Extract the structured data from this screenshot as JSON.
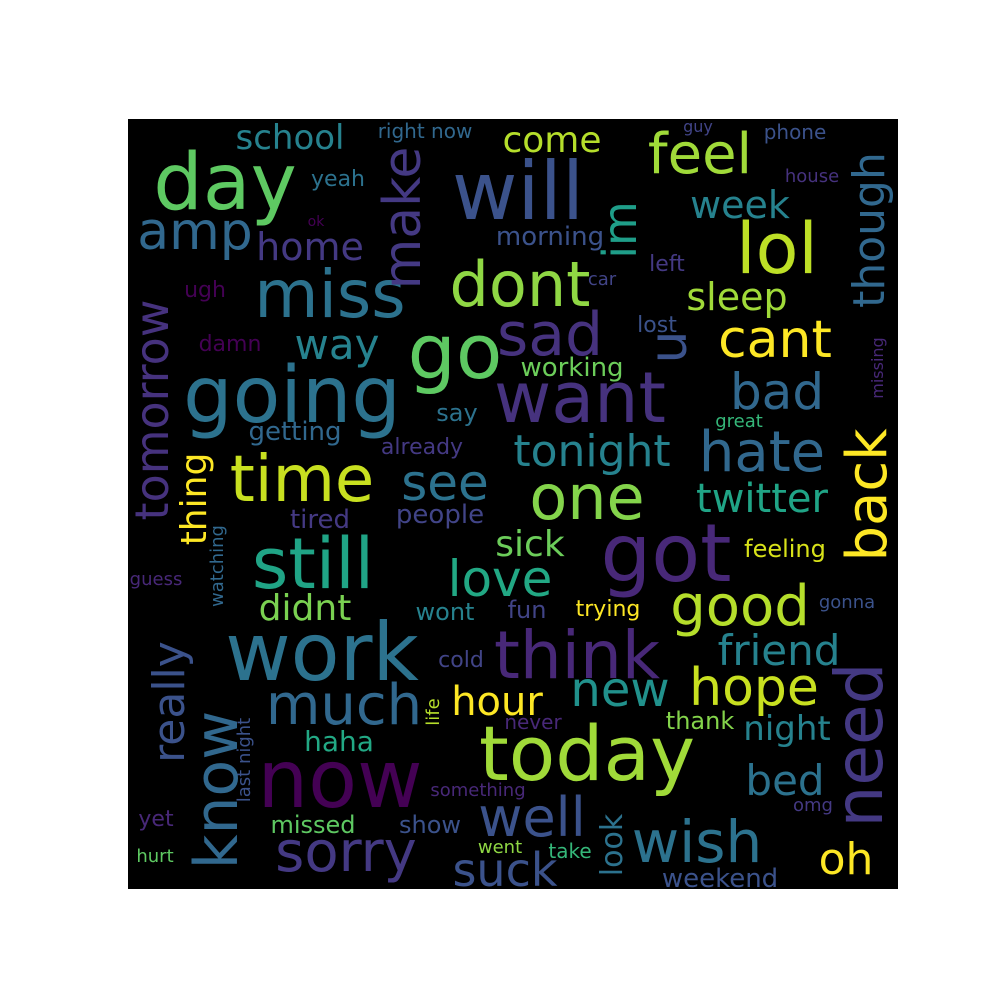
{
  "chart_data": {
    "type": "wordcloud",
    "background": "#000000",
    "colormap": "viridis",
    "words": [
      {
        "text": "will",
        "color": "#3b528b"
      },
      {
        "text": "day",
        "color": "#5ec962"
      },
      {
        "text": "miss",
        "color": "#2c728e"
      },
      {
        "text": "amp",
        "color": "#31688e"
      },
      {
        "text": "school",
        "color": "#26828e"
      },
      {
        "text": "make",
        "color": "#443983"
      },
      {
        "text": "right now",
        "color": "#31688e"
      },
      {
        "text": "come",
        "color": "#b5de2b"
      },
      {
        "text": "feel",
        "color": "#a0da39"
      },
      {
        "text": "guy",
        "color": "#414487"
      },
      {
        "text": "phone",
        "color": "#3b528b"
      },
      {
        "text": "though",
        "color": "#31688e"
      },
      {
        "text": "yeah",
        "color": "#2c728e"
      },
      {
        "text": "house",
        "color": "#46327e"
      },
      {
        "text": "week",
        "color": "#26828e"
      },
      {
        "text": "im",
        "color": "#1f9e89"
      },
      {
        "text": "lol",
        "color": "#bddf26"
      },
      {
        "text": "home",
        "color": "#443983"
      },
      {
        "text": "ok",
        "color": "#440154"
      },
      {
        "text": "morning",
        "color": "#3b528b"
      },
      {
        "text": "dont",
        "color": "#8fd744"
      },
      {
        "text": "car",
        "color": "#414487"
      },
      {
        "text": "left",
        "color": "#443983"
      },
      {
        "text": "sleep",
        "color": "#a0da39"
      },
      {
        "text": "ugh",
        "color": "#440154"
      },
      {
        "text": "tomorrow",
        "color": "#46327e"
      },
      {
        "text": "go",
        "color": "#5ec962"
      },
      {
        "text": "sad",
        "color": "#46327e"
      },
      {
        "text": "u",
        "color": "#3b528b"
      },
      {
        "text": "lost",
        "color": "#3b528b"
      },
      {
        "text": "cant",
        "color": "#fde725"
      },
      {
        "text": "missing",
        "color": "#482878"
      },
      {
        "text": "damn",
        "color": "#440154"
      },
      {
        "text": "way",
        "color": "#26828e"
      },
      {
        "text": "going",
        "color": "#2c728e"
      },
      {
        "text": "working",
        "color": "#6ccd5a"
      },
      {
        "text": "want",
        "color": "#46327e"
      },
      {
        "text": "bad",
        "color": "#31688e"
      },
      {
        "text": "say",
        "color": "#2c728e"
      },
      {
        "text": "great",
        "color": "#35b779"
      },
      {
        "text": "getting",
        "color": "#31688e"
      },
      {
        "text": "already",
        "color": "#443983"
      },
      {
        "text": "tonight",
        "color": "#26828e"
      },
      {
        "text": "hate",
        "color": "#31688e"
      },
      {
        "text": "back",
        "color": "#fde725"
      },
      {
        "text": "thing",
        "color": "#fde725"
      },
      {
        "text": "time",
        "color": "#c8e020"
      },
      {
        "text": "see",
        "color": "#2c728e"
      },
      {
        "text": "one",
        "color": "#84d44b"
      },
      {
        "text": "twitter",
        "color": "#20a486"
      },
      {
        "text": "tired",
        "color": "#443983"
      },
      {
        "text": "people",
        "color": "#414487"
      },
      {
        "text": "sick",
        "color": "#6ccd5a"
      },
      {
        "text": "got",
        "color": "#482878"
      },
      {
        "text": "watching",
        "color": "#31688e"
      },
      {
        "text": "still",
        "color": "#20a486"
      },
      {
        "text": "love",
        "color": "#22a884"
      },
      {
        "text": "feeling",
        "color": "#d8e219"
      },
      {
        "text": "guess",
        "color": "#482878"
      },
      {
        "text": "really",
        "color": "#3b528b"
      },
      {
        "text": "didnt",
        "color": "#7ad151"
      },
      {
        "text": "wont",
        "color": "#26828e"
      },
      {
        "text": "fun",
        "color": "#414487"
      },
      {
        "text": "trying",
        "color": "#fde725"
      },
      {
        "text": "good",
        "color": "#b5de2b"
      },
      {
        "text": "gonna",
        "color": "#3b528b"
      },
      {
        "text": "work",
        "color": "#2c728e"
      },
      {
        "text": "think",
        "color": "#482878"
      },
      {
        "text": "friend",
        "color": "#26828e"
      },
      {
        "text": "cold",
        "color": "#414487"
      },
      {
        "text": "much",
        "color": "#31688e"
      },
      {
        "text": "new",
        "color": "#21918c"
      },
      {
        "text": "hope",
        "color": "#c8e020"
      },
      {
        "text": "need",
        "color": "#443983"
      },
      {
        "text": "hour",
        "color": "#fde725"
      },
      {
        "text": "life",
        "color": "#b5de2b"
      },
      {
        "text": "know",
        "color": "#31688e"
      },
      {
        "text": "last night",
        "color": "#3b528b"
      },
      {
        "text": "haha",
        "color": "#22a884"
      },
      {
        "text": "today",
        "color": "#a0da39"
      },
      {
        "text": "never",
        "color": "#482878"
      },
      {
        "text": "thank",
        "color": "#84d44b"
      },
      {
        "text": "night",
        "color": "#26828e"
      },
      {
        "text": "now",
        "color": "#440154"
      },
      {
        "text": "bed",
        "color": "#2c728e"
      },
      {
        "text": "something",
        "color": "#482878"
      },
      {
        "text": "omg",
        "color": "#443983"
      },
      {
        "text": "yet",
        "color": "#482878"
      },
      {
        "text": "missed",
        "color": "#5ec962"
      },
      {
        "text": "show",
        "color": "#3b528b"
      },
      {
        "text": "well",
        "color": "#3b528b"
      },
      {
        "text": "look",
        "color": "#2c728e"
      },
      {
        "text": "sorry",
        "color": "#443983"
      },
      {
        "text": "wish",
        "color": "#2c728e"
      },
      {
        "text": "oh",
        "color": "#fde725"
      },
      {
        "text": "hurt",
        "color": "#5ec962"
      },
      {
        "text": "went",
        "color": "#8fd744"
      },
      {
        "text": "take",
        "color": "#35b779"
      },
      {
        "text": "suck",
        "color": "#3b528b"
      },
      {
        "text": "weekend",
        "color": "#3b528b"
      }
    ]
  }
}
